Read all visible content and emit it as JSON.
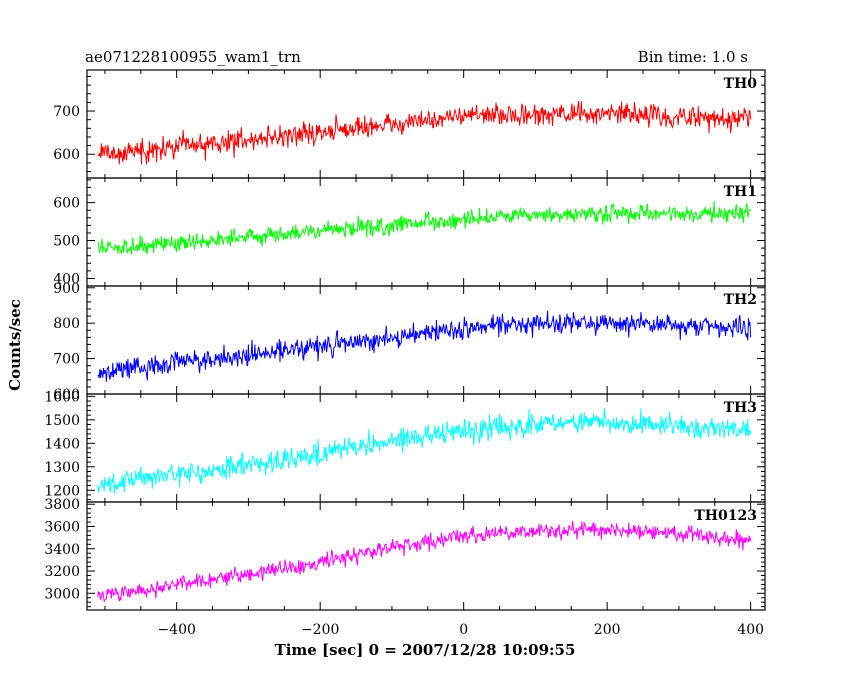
{
  "header": {
    "title": "ae071228100955_wam1_trn",
    "bin_time": "Bin time: 1.0 s"
  },
  "chart_data": {
    "type": "line",
    "xlabel": "Time [sec] 0 = 2007/12/28 10:09:55",
    "ylabel": "Counts/sec",
    "xlim": [
      -525,
      420
    ],
    "x_ticks": [
      -400,
      -200,
      0,
      200,
      400
    ],
    "x_tick_labels": [
      "−400",
      "−200",
      "0",
      "200",
      "400"
    ],
    "x_range": [
      -510,
      400
    ],
    "bin_time_s": 1.0,
    "panels": [
      {
        "name": "TH0",
        "color": "#ff0000",
        "ylim": [
          545,
          795
        ],
        "y_ticks": [
          600,
          700
        ],
        "y_tick_labels": [
          "600",
          "700"
        ],
        "trend": [
          [
            -510,
            600
          ],
          [
            -400,
            615
          ],
          [
            -300,
            635
          ],
          [
            -200,
            650
          ],
          [
            -100,
            670
          ],
          [
            0,
            690
          ],
          [
            100,
            690
          ],
          [
            200,
            695
          ],
          [
            300,
            685
          ],
          [
            400,
            685
          ]
        ],
        "noise_amp": 60
      },
      {
        "name": "TH1",
        "color": "#00ff00",
        "ylim": [
          380,
          665
        ],
        "y_ticks": [
          400,
          500,
          600
        ],
        "y_tick_labels": [
          "400",
          "500",
          "600"
        ],
        "trend": [
          [
            -510,
            480
          ],
          [
            -400,
            495
          ],
          [
            -300,
            510
          ],
          [
            -200,
            525
          ],
          [
            -100,
            540
          ],
          [
            0,
            555
          ],
          [
            100,
            565
          ],
          [
            200,
            570
          ],
          [
            300,
            570
          ],
          [
            400,
            570
          ]
        ],
        "noise_amp": 55
      },
      {
        "name": "TH2",
        "color": "#0000ff",
        "ylim": [
          600,
          905
        ],
        "y_ticks": [
          600,
          700,
          800,
          900
        ],
        "y_tick_labels": [
          "600",
          "700",
          "800",
          "900"
        ],
        "trend": [
          [
            -510,
            660
          ],
          [
            -400,
            690
          ],
          [
            -300,
            710
          ],
          [
            -200,
            735
          ],
          [
            -100,
            760
          ],
          [
            0,
            785
          ],
          [
            100,
            800
          ],
          [
            200,
            800
          ],
          [
            300,
            795
          ],
          [
            400,
            785
          ]
        ],
        "noise_amp": 70
      },
      {
        "name": "TH3",
        "color": "#00ffff",
        "ylim": [
          1150,
          1610
        ],
        "y_ticks": [
          1200,
          1300,
          1400,
          1500,
          1600
        ],
        "y_tick_labels": [
          "1200",
          "1300",
          "1400",
          "1500",
          "1600"
        ],
        "trend": [
          [
            -510,
            1220
          ],
          [
            -400,
            1265
          ],
          [
            -300,
            1310
          ],
          [
            -200,
            1355
          ],
          [
            -100,
            1410
          ],
          [
            0,
            1450
          ],
          [
            100,
            1480
          ],
          [
            200,
            1490
          ],
          [
            300,
            1480
          ],
          [
            400,
            1450
          ]
        ],
        "noise_amp": 110
      },
      {
        "name": "TH0123",
        "color": "#ff00ff",
        "ylim": [
          2850,
          3820
        ],
        "y_ticks": [
          3000,
          3200,
          3400,
          3600,
          3800
        ],
        "y_tick_labels": [
          "3000",
          "3200",
          "3400",
          "3600",
          "3800"
        ],
        "trend": [
          [
            -510,
            2980
          ],
          [
            -400,
            3070
          ],
          [
            -300,
            3170
          ],
          [
            -200,
            3290
          ],
          [
            -100,
            3410
          ],
          [
            0,
            3510
          ],
          [
            100,
            3560
          ],
          [
            200,
            3570
          ],
          [
            300,
            3540
          ],
          [
            400,
            3470
          ]
        ],
        "noise_amp": 170
      }
    ]
  }
}
